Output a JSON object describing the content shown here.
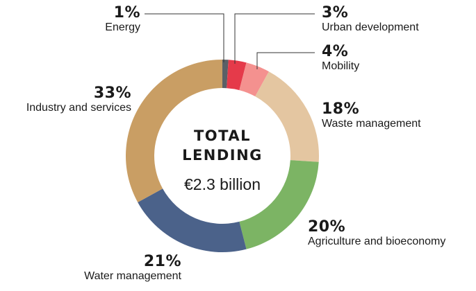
{
  "chart_data": {
    "type": "pie",
    "variant": "donut",
    "center_title_line1": "TOTAL",
    "center_title_line2": "LENDING",
    "center_value": "€2.3 billion",
    "slices": [
      {
        "label": "Energy",
        "value": 1,
        "value_label": "1%",
        "color": "#5a6066"
      },
      {
        "label": "Urban development",
        "value": 3,
        "value_label": "3%",
        "color": "#e53a4a"
      },
      {
        "label": "Mobility",
        "value": 4,
        "value_label": "4%",
        "color": "#f4918f"
      },
      {
        "label": "Waste management",
        "value": 18,
        "value_label": "18%",
        "color": "#e4c6a1"
      },
      {
        "label": "Agriculture and bioeconomy",
        "value": 20,
        "value_label": "20%",
        "color": "#7cb464"
      },
      {
        "label": "Water management",
        "value": 21,
        "value_label": "21%",
        "color": "#4b628a"
      },
      {
        "label": "Industry and services",
        "value": 33,
        "value_label": "33%",
        "color": "#c99e64"
      }
    ]
  }
}
